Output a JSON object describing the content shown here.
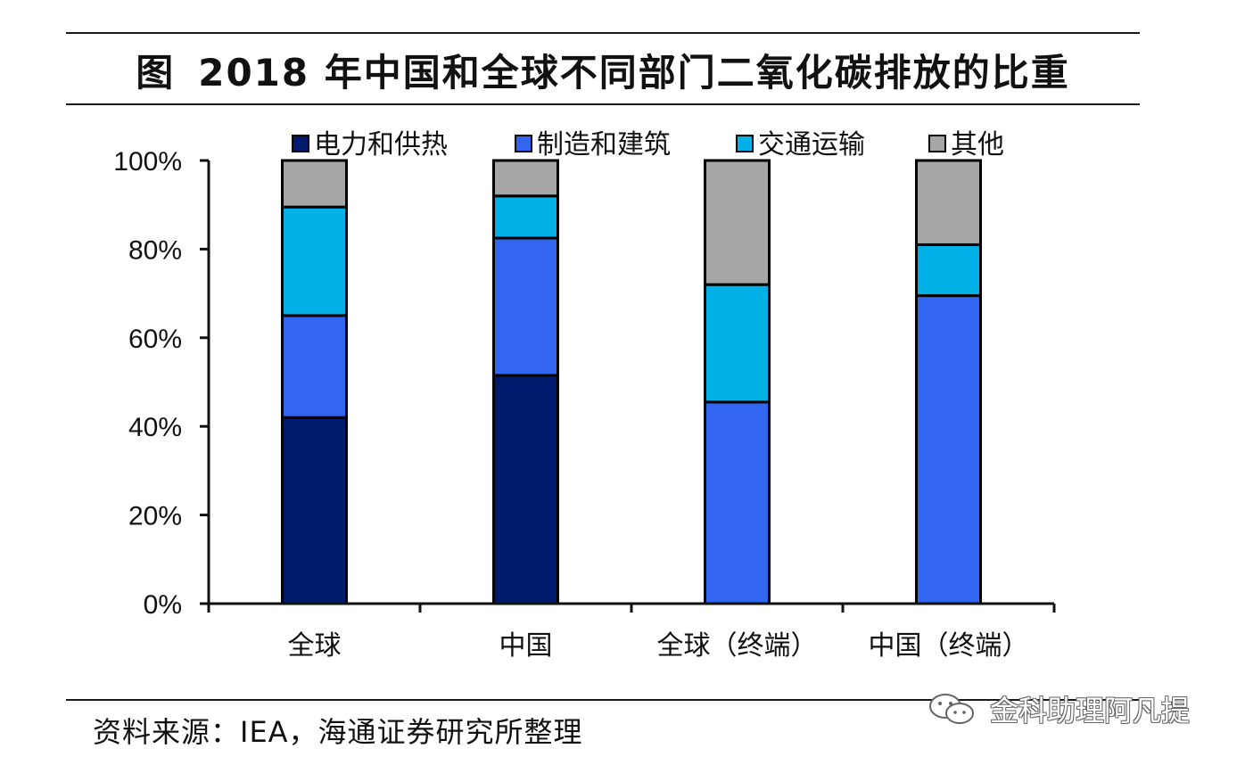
{
  "header": {
    "figure_label": "图",
    "title": "2018 年中国和全球不同部门二氧化碳排放的比重"
  },
  "source": "资料来源：IEA，海通证券研究所整理",
  "watermark": "金科助理阿凡提",
  "colors": {
    "power_heat": "#001a6e",
    "manufacturing_construction": "#3366f0",
    "transport": "#00b0e6",
    "other": "#a6a6a6",
    "axis": "#111111"
  },
  "chart_data": {
    "type": "bar",
    "stacked": true,
    "categories": [
      "全球",
      "中国",
      "全球（终端）",
      "中国（终端）"
    ],
    "series": [
      {
        "name": "电力和供热",
        "values": [
          42,
          51.5,
          0,
          0
        ]
      },
      {
        "name": "制造和建筑",
        "values": [
          23,
          31,
          45.5,
          69.5
        ]
      },
      {
        "name": "交通运输",
        "values": [
          24.5,
          9.5,
          26.5,
          11.5
        ]
      },
      {
        "name": "其他",
        "values": [
          10.5,
          8,
          28,
          19
        ]
      }
    ],
    "ylim": [
      0,
      100
    ],
    "yticks": [
      "0%",
      "20%",
      "40%",
      "60%",
      "80%",
      "100%"
    ],
    "legend_position": "top",
    "grid": false
  }
}
